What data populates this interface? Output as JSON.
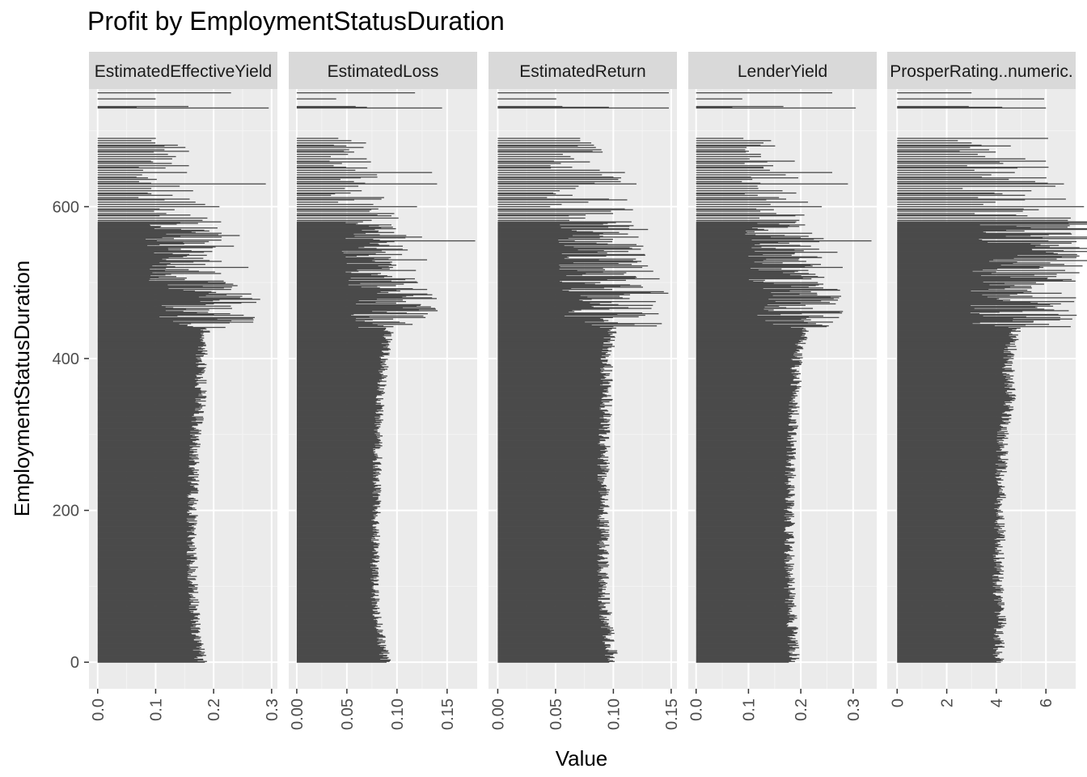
{
  "chart_data": {
    "type": "bar",
    "orientation": "horizontal",
    "title": "Profit by EmploymentStatusDuration",
    "xlabel": "Value",
    "ylabel": "EmploymentStatusDuration",
    "ylim": [
      -35,
      755
    ],
    "y_ticks": [
      0,
      200,
      400,
      600
    ],
    "y_tick_labels": [
      "0",
      "200",
      "400",
      "600"
    ],
    "grid": true,
    "bar_color": "#4a4a4a",
    "panel_background": "#ebebeb",
    "strip_background": "#d9d9d9",
    "facets": [
      {
        "label": "EstimatedEffectiveYield",
        "xlim": [
          -0.015,
          0.31
        ],
        "x_ticks": [
          0.0,
          0.1,
          0.2,
          0.3
        ],
        "x_tick_labels": [
          "0.0",
          "0.1",
          "0.2",
          "0.3"
        ],
        "profile": [
          [
            0,
            0.18
          ],
          [
            50,
            0.17
          ],
          [
            100,
            0.165
          ],
          [
            200,
            0.165
          ],
          [
            300,
            0.17
          ],
          [
            350,
            0.18
          ],
          [
            400,
            0.18
          ],
          [
            450,
            0.19
          ],
          [
            480,
            0.2
          ],
          [
            500,
            0.16
          ],
          [
            550,
            0.15
          ],
          [
            580,
            0.15
          ],
          [
            620,
            0.12
          ],
          [
            700,
            0.11
          ]
        ],
        "highlights": [
          [
            562,
            0.245
          ],
          [
            548,
            0.235
          ],
          [
            520,
            0.26
          ],
          [
            485,
            0.265
          ],
          [
            622,
            0.28
          ],
          [
            630,
            0.29
          ],
          [
            640,
            0.23
          ],
          [
            600,
            0.21
          ],
          [
            730,
            0.295
          ],
          [
            750,
            0.23
          ]
        ]
      },
      {
        "label": "EstimatedLoss",
        "xlim": [
          -0.008,
          0.18
        ],
        "x_ticks": [
          0.0,
          0.05,
          0.1,
          0.15
        ],
        "x_tick_labels": [
          "0.00",
          "0.05",
          "0.10",
          "0.15"
        ],
        "profile": [
          [
            0,
            0.09
          ],
          [
            50,
            0.082
          ],
          [
            100,
            0.078
          ],
          [
            200,
            0.08
          ],
          [
            300,
            0.082
          ],
          [
            350,
            0.085
          ],
          [
            400,
            0.088
          ],
          [
            450,
            0.095
          ],
          [
            480,
            0.1
          ],
          [
            500,
            0.085
          ],
          [
            550,
            0.08
          ],
          [
            580,
            0.075
          ],
          [
            620,
            0.06
          ],
          [
            700,
            0.05
          ]
        ],
        "highlights": [
          [
            555,
            0.178
          ],
          [
            560,
            0.125
          ],
          [
            530,
            0.13
          ],
          [
            480,
            0.135
          ],
          [
            622,
            0.145
          ],
          [
            630,
            0.14
          ],
          [
            645,
            0.135
          ],
          [
            600,
            0.12
          ],
          [
            730,
            0.145
          ],
          [
            750,
            0.118
          ]
        ]
      },
      {
        "label": "EstimatedReturn",
        "xlim": [
          -0.008,
          0.155
        ],
        "x_ticks": [
          0.0,
          0.05,
          0.1,
          0.15
        ],
        "x_tick_labels": [
          "0.00",
          "0.05",
          "0.10",
          "0.15"
        ],
        "profile": [
          [
            0,
            0.1
          ],
          [
            50,
            0.095
          ],
          [
            100,
            0.092
          ],
          [
            200,
            0.092
          ],
          [
            300,
            0.093
          ],
          [
            350,
            0.095
          ],
          [
            400,
            0.095
          ],
          [
            450,
            0.1
          ],
          [
            480,
            0.105
          ],
          [
            500,
            0.095
          ],
          [
            550,
            0.09
          ],
          [
            580,
            0.085
          ],
          [
            620,
            0.075
          ],
          [
            700,
            0.07
          ]
        ],
        "highlights": [
          [
            570,
            0.13
          ],
          [
            550,
            0.12
          ],
          [
            520,
            0.125
          ],
          [
            505,
            0.14
          ],
          [
            460,
            0.125
          ],
          [
            622,
            0.14
          ],
          [
            630,
            0.12
          ],
          [
            645,
            0.11
          ],
          [
            730,
            0.148
          ],
          [
            750,
            0.148
          ]
        ]
      },
      {
        "label": "LenderYield",
        "xlim": [
          -0.015,
          0.345
        ],
        "x_ticks": [
          0.0,
          0.1,
          0.2,
          0.3
        ],
        "x_tick_labels": [
          "0.0",
          "0.1",
          "0.2",
          "0.3"
        ],
        "profile": [
          [
            0,
            0.19
          ],
          [
            50,
            0.185
          ],
          [
            100,
            0.18
          ],
          [
            200,
            0.18
          ],
          [
            300,
            0.185
          ],
          [
            350,
            0.19
          ],
          [
            400,
            0.195
          ],
          [
            450,
            0.21
          ],
          [
            480,
            0.22
          ],
          [
            500,
            0.18
          ],
          [
            550,
            0.17
          ],
          [
            580,
            0.165
          ],
          [
            620,
            0.14
          ],
          [
            700,
            0.12
          ]
        ],
        "highlights": [
          [
            555,
            0.335
          ],
          [
            540,
            0.27
          ],
          [
            520,
            0.28
          ],
          [
            490,
            0.275
          ],
          [
            622,
            0.3
          ],
          [
            630,
            0.29
          ],
          [
            645,
            0.26
          ],
          [
            600,
            0.24
          ],
          [
            730,
            0.305
          ],
          [
            750,
            0.26
          ]
        ]
      },
      {
        "label": "ProsperRating..numeric.",
        "xlim": [
          -0.4,
          7.2
        ],
        "x_ticks": [
          0,
          2,
          4,
          6
        ],
        "x_tick_labels": [
          "0",
          "2",
          "4",
          "6"
        ],
        "profile": [
          [
            0,
            4.1
          ],
          [
            50,
            4.2
          ],
          [
            100,
            4.1
          ],
          [
            200,
            4.2
          ],
          [
            300,
            4.3
          ],
          [
            350,
            4.6
          ],
          [
            400,
            4.5
          ],
          [
            450,
            5.0
          ],
          [
            480,
            5.1
          ],
          [
            500,
            5.0
          ],
          [
            550,
            6.0
          ],
          [
            580,
            5.9
          ],
          [
            620,
            4.8
          ],
          [
            700,
            4.2
          ]
        ],
        "highlights": [
          [
            565,
            7.0
          ],
          [
            555,
            6.1
          ],
          [
            540,
            6.0
          ],
          [
            520,
            5.9
          ],
          [
            500,
            5.6
          ],
          [
            622,
            6.0
          ],
          [
            640,
            6.0
          ],
          [
            660,
            6.0
          ],
          [
            730,
            6.0
          ],
          [
            750,
            3.0
          ]
        ]
      }
    ]
  }
}
